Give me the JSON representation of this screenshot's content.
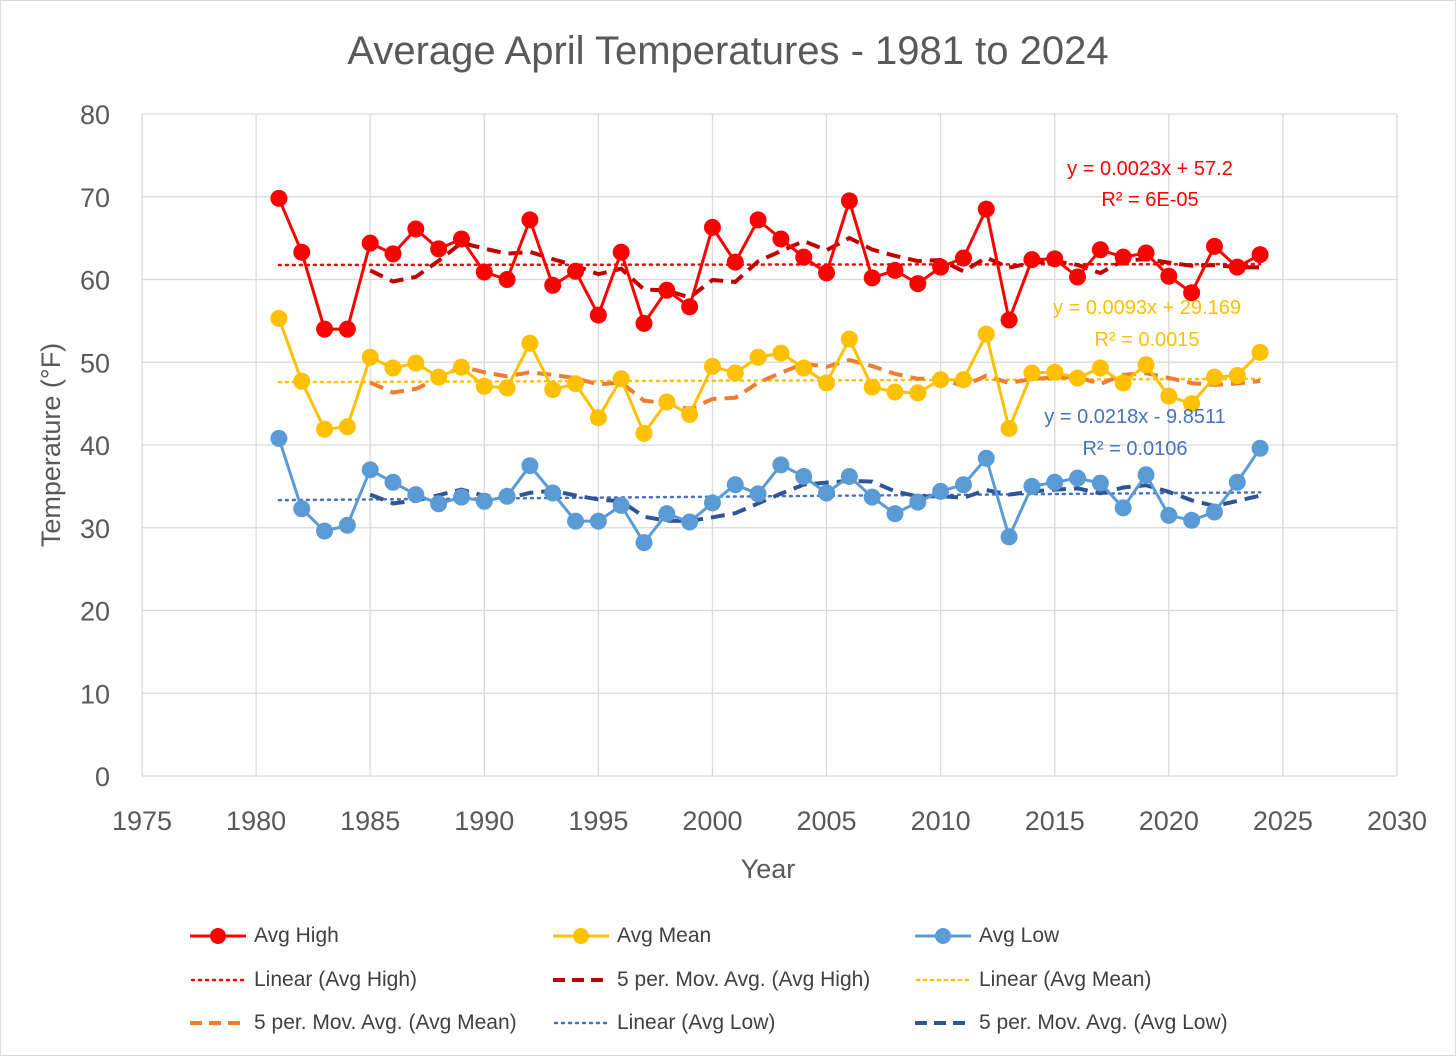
{
  "chart_data": {
    "type": "line",
    "title": "Average April Temperatures - 1981 to 2024",
    "xlabel": "Year",
    "ylabel": "Temperature (°F)",
    "xlim": [
      1975,
      2030
    ],
    "ylim": [
      0,
      80
    ],
    "xticks": [
      1975,
      1980,
      1985,
      1990,
      1995,
      2000,
      2005,
      2010,
      2015,
      2020,
      2025,
      2030
    ],
    "yticks": [
      0,
      10,
      20,
      30,
      40,
      50,
      60,
      70,
      80
    ],
    "grid": true,
    "legend_position": "bottom",
    "x": [
      1981,
      1982,
      1983,
      1984,
      1985,
      1986,
      1987,
      1988,
      1989,
      1990,
      1991,
      1992,
      1993,
      1994,
      1995,
      1996,
      1997,
      1998,
      1999,
      2000,
      2001,
      2002,
      2003,
      2004,
      2005,
      2006,
      2007,
      2008,
      2009,
      2010,
      2011,
      2012,
      2013,
      2014,
      2015,
      2016,
      2017,
      2018,
      2019,
      2020,
      2021,
      2022,
      2023,
      2024
    ],
    "series": [
      {
        "name": "Avg High",
        "color": "#ff0000",
        "ma_color": "#c00000",
        "values": [
          69.8,
          63.3,
          54.0,
          54.0,
          64.4,
          63.1,
          66.1,
          63.7,
          64.9,
          60.9,
          60.0,
          67.2,
          59.3,
          61.0,
          55.7,
          63.3,
          54.7,
          58.7,
          56.7,
          66.3,
          62.1,
          67.2,
          64.9,
          62.7,
          60.8,
          69.5,
          60.2,
          61.1,
          59.5,
          61.5,
          62.6,
          68.5,
          55.1,
          62.4,
          62.5,
          60.3,
          63.6,
          62.7,
          63.2,
          60.4,
          58.4,
          64.0,
          61.5,
          63.0
        ],
        "trend": {
          "slope": 0.0023,
          "intercept": 57.2,
          "equation": "y = 0.0023x + 57.2",
          "r2": "R² = 6E-05"
        }
      },
      {
        "name": "Avg Mean",
        "color": "#ffc000",
        "ma_color": "#ed7d31",
        "values": [
          55.3,
          47.7,
          41.9,
          42.2,
          50.6,
          49.3,
          49.9,
          48.2,
          49.4,
          47.1,
          46.9,
          52.3,
          46.7,
          47.4,
          43.3,
          48.0,
          41.4,
          45.2,
          43.7,
          49.5,
          48.7,
          50.6,
          51.1,
          49.3,
          47.5,
          52.8,
          47.0,
          46.4,
          46.3,
          47.9,
          47.9,
          53.4,
          42.0,
          48.7,
          48.8,
          48.1,
          49.3,
          47.5,
          49.7,
          45.9,
          45.0,
          48.2,
          48.4,
          51.2
        ],
        "trend": {
          "slope": 0.0093,
          "intercept": 29.169,
          "equation": "y = 0.0093x + 29.169",
          "r2": "R² = 0.0015"
        }
      },
      {
        "name": "Avg Low",
        "color": "#5b9bd5",
        "ma_color": "#2f5597",
        "trend_color": "#4472c4",
        "values": [
          40.8,
          32.3,
          29.6,
          30.3,
          37.0,
          35.5,
          34.0,
          32.9,
          33.7,
          33.2,
          33.8,
          37.5,
          34.2,
          30.8,
          30.8,
          32.7,
          28.2,
          31.7,
          30.7,
          33.0,
          35.2,
          34.1,
          37.6,
          36.2,
          34.2,
          36.2,
          33.7,
          31.7,
          33.1,
          34.4,
          35.2,
          38.4,
          28.9,
          35.0,
          35.5,
          36.0,
          35.4,
          32.4,
          36.4,
          31.5,
          30.9,
          31.9,
          35.5,
          39.6
        ],
        "trend": {
          "slope": 0.0218,
          "intercept": -9.8511,
          "equation": "y = 0.0218x - 9.8511",
          "r2": "R² = 0.0106"
        }
      }
    ],
    "moving_average_period": 5,
    "legend": [
      "Avg High",
      "Avg Mean",
      "Avg Low",
      "Linear (Avg High)",
      "5 per. Mov. Avg. (Avg High)",
      "Linear (Avg Mean)",
      "5 per. Mov. Avg. (Avg Mean)",
      "Linear (Avg Low)",
      "5 per. Mov. Avg. (Avg Low)"
    ]
  }
}
